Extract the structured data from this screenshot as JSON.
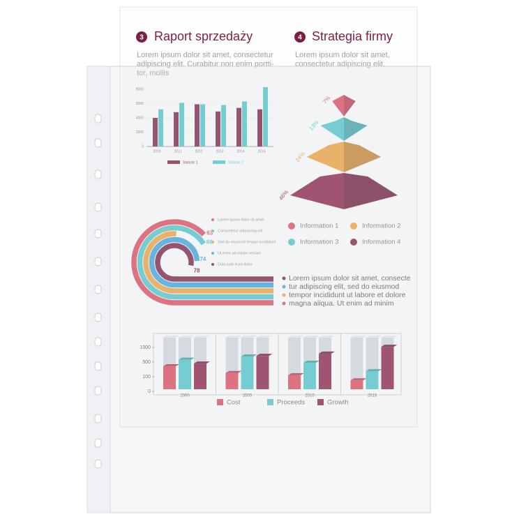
{
  "sections": [
    {
      "number": "3",
      "title": "Raport sprzedaży",
      "lines": [
        "Lorem ipsum dolor sit amet, consectetur",
        "adipiscing elit. Curabitur non enim portti-",
        "tor, mollis"
      ]
    },
    {
      "number": "4",
      "title": "Strategia firmy",
      "lines": [
        "Lorem ipsum dolor sit amet,",
        "consectetur adipiscing elit."
      ]
    }
  ],
  "bar_chart": {
    "type": "bar",
    "categories": [
      "2010",
      "2011",
      "2012",
      "2013",
      "2014",
      "2015"
    ],
    "ylim": [
      0,
      8000
    ],
    "yticks": [
      0,
      2000,
      4000,
      6000,
      8000
    ],
    "series": [
      {
        "name": "Statistic 1",
        "color": "#7d1f43",
        "values": [
          4000,
          4800,
          5900,
          4900,
          5400,
          5200
        ]
      },
      {
        "name": "Statistic 2",
        "color": "#4fc6c9",
        "values": [
          5200,
          6100,
          5900,
          5800,
          6300,
          8300
        ]
      }
    ]
  },
  "pyramid": {
    "type": "pyramid",
    "values": [
      7,
      13,
      24,
      46
    ],
    "value_labels": [
      "7%",
      "13%",
      "24%",
      "46%"
    ],
    "colors": [
      "#e0485a",
      "#4fc6c9",
      "#f0a03a",
      "#8a1f45"
    ]
  },
  "rings": {
    "type": "ring",
    "values": [
      63,
      66,
      51,
      74,
      78
    ],
    "colors": [
      "#e0485a",
      "#4fc6c9",
      "#f0a03a",
      "#3fa3de",
      "#7d1f43"
    ],
    "legend": [
      "Lorem ipsum dolor sit amet",
      "Consectetur adipiscing elit",
      "Sed do eiusmod tempor incididunt",
      "Ut enim ad minim veniam",
      "Duis aute irure dolor"
    ]
  },
  "info_legend": [
    {
      "name": "Information 1",
      "color": "#e0485a"
    },
    {
      "name": "Information 2",
      "color": "#f0a03a"
    },
    {
      "name": "Information 3",
      "color": "#4fc6c9"
    },
    {
      "name": "Information 4",
      "color": "#7d1f43"
    }
  ],
  "paragraph": [
    "Lorem ipsum dolor sit amet, consecte",
    "tur adipiscing elit, sed do eiusmod",
    "tempor incididunt ut labore et dolore",
    "magna aliqua. Ut enim ad minim"
  ],
  "column_chart": {
    "type": "bar3d",
    "categories": [
      "2000",
      "2005",
      "2010",
      "2015"
    ],
    "yticks": [
      0,
      100,
      500,
      1000
    ],
    "series": [
      {
        "name": "Cost",
        "color": "#e0485a",
        "values": [
          385,
          200,
          140,
          75
        ]
      },
      {
        "name": "Proceeds",
        "color": "#4fc6c9",
        "values": [
          580,
          690,
          480,
          250
        ]
      },
      {
        "name": "Growth",
        "color": "#8a1f45",
        "values": [
          460,
          710,
          790,
          1020
        ]
      }
    ]
  }
}
